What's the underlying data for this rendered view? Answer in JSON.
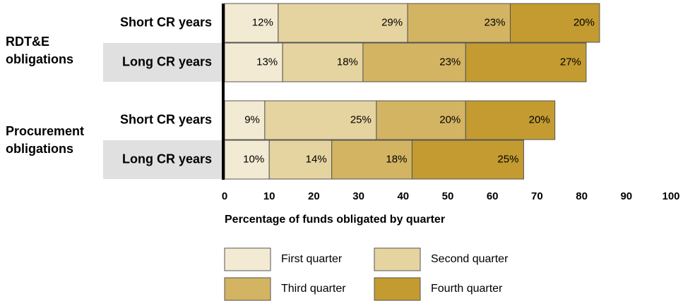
{
  "chart_data": {
    "type": "stacked_bar_h",
    "groups": [
      "RDT&E obligations",
      "Procurement obligations"
    ],
    "categories": [
      "Short CR years",
      "Long CR years",
      "Short CR years",
      "Long CR years"
    ],
    "series": [
      {
        "name": "First quarter",
        "color": "#f3ead3",
        "values": [
          12,
          13,
          9,
          10
        ],
        "value_labels": [
          "12%",
          "13%",
          "9%",
          "10%"
        ]
      },
      {
        "name": "Second quarter",
        "color": "#e6d4a0",
        "values": [
          29,
          18,
          25,
          14
        ],
        "value_labels": [
          "29%",
          "18%",
          "25%",
          "14%"
        ]
      },
      {
        "name": "Third quarter",
        "color": "#d3b462",
        "values": [
          23,
          23,
          20,
          18
        ],
        "value_labels": [
          "23%",
          "23%",
          "20%",
          "18%"
        ]
      },
      {
        "name": "Fourth quarter",
        "color": "#c39b30",
        "values": [
          20,
          27,
          20,
          25
        ],
        "value_labels": [
          "20%",
          "27%",
          "20%",
          "25%"
        ]
      }
    ],
    "xlabel": "Percentage of funds obligated by quarter",
    "xlim": [
      0,
      100
    ],
    "xticks": [
      0,
      10,
      20,
      30,
      40,
      50,
      60,
      70,
      80,
      90,
      100
    ]
  }
}
